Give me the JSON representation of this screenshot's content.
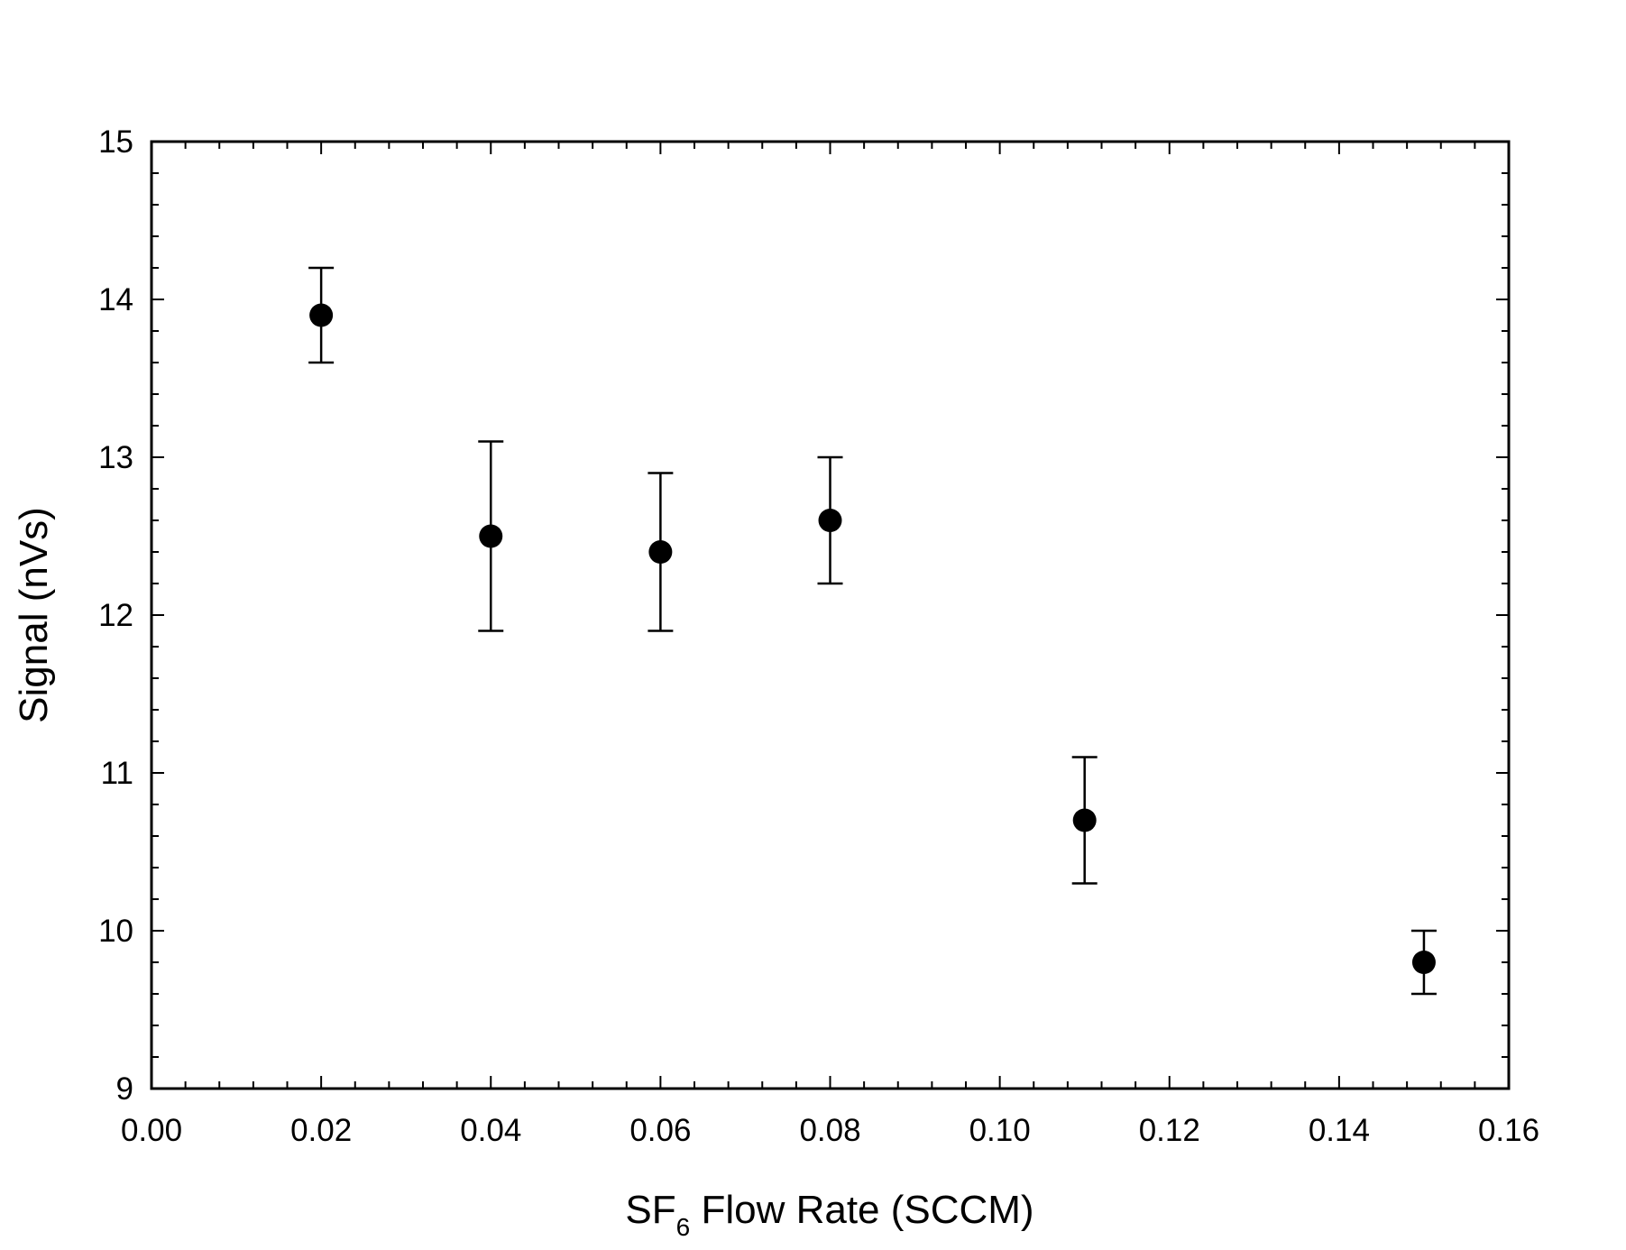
{
  "chart_data": {
    "type": "scatter",
    "title": "",
    "xlabel": {
      "prefix": "SF",
      "subscript": "6",
      "suffix": " Flow Rate (SCCM)"
    },
    "ylabel": "Signal (nVs)",
    "xlim": [
      0.0,
      0.16
    ],
    "ylim": [
      9,
      15
    ],
    "xticks": [
      0.0,
      0.02,
      0.04,
      0.06,
      0.08,
      0.1,
      0.12,
      0.14,
      0.16
    ],
    "xtick_labels": [
      "0.00",
      "0.02",
      "0.04",
      "0.06",
      "0.08",
      "0.10",
      "0.12",
      "0.14",
      "0.16"
    ],
    "yticks": [
      9,
      10,
      11,
      12,
      13,
      14,
      15
    ],
    "ytick_labels": [
      "9",
      "10",
      "11",
      "12",
      "13",
      "14",
      "15"
    ],
    "x_minor_step": 0.004,
    "y_minor_step": 0.2,
    "grid": false,
    "colors": {
      "marker": "#000000",
      "axis": "#000000",
      "background": "#ffffff"
    },
    "series": [
      {
        "name": "Signal",
        "marker": "filled-circle",
        "points": [
          {
            "x": 0.02,
            "y": 13.9,
            "err_low": 13.6,
            "err_high": 14.2
          },
          {
            "x": 0.04,
            "y": 12.5,
            "err_low": 11.9,
            "err_high": 13.1
          },
          {
            "x": 0.06,
            "y": 12.4,
            "err_low": 11.9,
            "err_high": 12.9
          },
          {
            "x": 0.08,
            "y": 12.6,
            "err_low": 12.2,
            "err_high": 13.0
          },
          {
            "x": 0.11,
            "y": 10.7,
            "err_low": 10.3,
            "err_high": 11.1
          },
          {
            "x": 0.15,
            "y": 9.8,
            "err_low": 9.6,
            "err_high": 10.0
          }
        ]
      }
    ]
  }
}
